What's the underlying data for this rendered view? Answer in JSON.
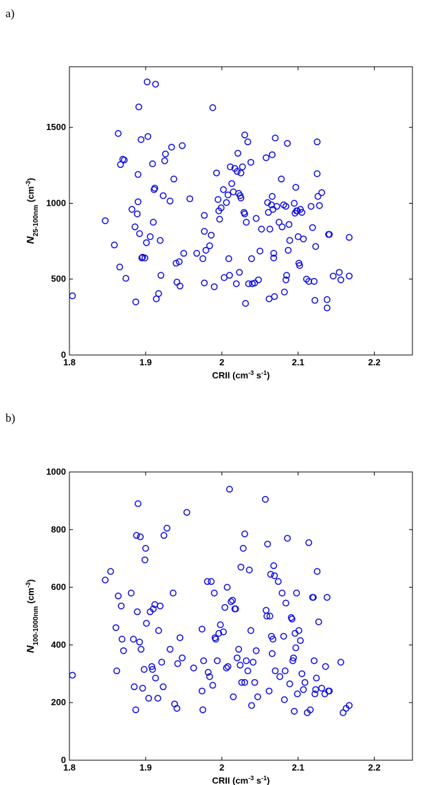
{
  "chart_data": [
    {
      "type": "scatter",
      "panel_label": "a)",
      "xlabel": {
        "base": "CRII  (cm",
        "sup1": "-3",
        "mid": " s",
        "sup2": "-1",
        "end": ")"
      },
      "ylabel": {
        "base": "N",
        "sub": "25-100nm",
        "mid": "  (cm",
        "sup": "-3",
        "end": ")"
      },
      "xlim": [
        1.8,
        2.25
      ],
      "ylim": [
        0,
        1900
      ],
      "xticks": [
        "1.8",
        "1.9",
        "2",
        "2.1",
        "2.2"
      ],
      "yticks": [
        "0",
        "500",
        "1000",
        "1500"
      ],
      "marker_color": "#1010e0",
      "points": [
        [
          1.804,
          390
        ],
        [
          1.847,
          885
        ],
        [
          1.859,
          725
        ],
        [
          1.864,
          1460
        ],
        [
          1.866,
          580
        ],
        [
          1.867,
          1255
        ],
        [
          1.87,
          1290
        ],
        [
          1.872,
          1285
        ],
        [
          1.874,
          505
        ],
        [
          1.882,
          960
        ],
        [
          1.886,
          845
        ],
        [
          1.887,
          350
        ],
        [
          1.889,
          930
        ],
        [
          1.89,
          1010
        ],
        [
          1.89,
          1190
        ],
        [
          1.891,
          1635
        ],
        [
          1.892,
          800
        ],
        [
          1.894,
          1420
        ],
        [
          1.895,
          640
        ],
        [
          1.896,
          645
        ],
        [
          1.899,
          640
        ],
        [
          1.901,
          740
        ],
        [
          1.902,
          1800
        ],
        [
          1.903,
          1440
        ],
        [
          1.906,
          780
        ],
        [
          1.909,
          1260
        ],
        [
          1.91,
          875
        ],
        [
          1.911,
          1090
        ],
        [
          1.912,
          1100
        ],
        [
          1.913,
          1785
        ],
        [
          1.914,
          370
        ],
        [
          1.917,
          405
        ],
        [
          1.919,
          755
        ],
        [
          1.92,
          525
        ],
        [
          1.923,
          1050
        ],
        [
          1.925,
          1280
        ],
        [
          1.926,
          1325
        ],
        [
          1.932,
          1015
        ],
        [
          1.934,
          1370
        ],
        [
          1.937,
          1160
        ],
        [
          1.94,
          605
        ],
        [
          1.941,
          480
        ],
        [
          1.944,
          615
        ],
        [
          1.945,
          455
        ],
        [
          1.948,
          1380
        ],
        [
          1.95,
          670
        ],
        [
          1.958,
          1030
        ],
        [
          1.967,
          670
        ],
        [
          1.975,
          635
        ],
        [
          1.977,
          920
        ],
        [
          1.977,
          815
        ],
        [
          1.977,
          475
        ],
        [
          1.979,
          690
        ],
        [
          1.984,
          720
        ],
        [
          1.986,
          790
        ],
        [
          1.988,
          1630
        ],
        [
          1.99,
          450
        ],
        [
          1.993,
          1200
        ],
        [
          1.995,
          1025
        ],
        [
          1.996,
          950
        ],
        [
          1.997,
          895
        ],
        [
          1.999,
          970
        ],
        [
          2.002,
          1090
        ],
        [
          2.003,
          510
        ],
        [
          2.006,
          1005
        ],
        [
          2.008,
          1055
        ],
        [
          2.009,
          635
        ],
        [
          2.01,
          525
        ],
        [
          2.011,
          1240
        ],
        [
          2.013,
          1130
        ],
        [
          2.015,
          1075
        ],
        [
          2.017,
          1230
        ],
        [
          2.019,
          470
        ],
        [
          2.02,
          1210
        ],
        [
          2.021,
          1330
        ],
        [
          2.022,
          1065
        ],
        [
          2.023,
          545
        ],
        [
          2.024,
          1050
        ],
        [
          2.025,
          1200
        ],
        [
          2.025,
          1035
        ],
        [
          2.027,
          1240
        ],
        [
          2.029,
          940
        ],
        [
          2.03,
          930
        ],
        [
          2.03,
          1450
        ],
        [
          2.031,
          340
        ],
        [
          2.032,
          875
        ],
        [
          2.034,
          1405
        ],
        [
          2.035,
          470
        ],
        [
          2.038,
          1270
        ],
        [
          2.039,
          635
        ],
        [
          2.04,
          470
        ],
        [
          2.043,
          475
        ],
        [
          2.045,
          900
        ],
        [
          2.048,
          495
        ],
        [
          2.05,
          685
        ],
        [
          2.052,
          830
        ],
        [
          2.058,
          1300
        ],
        [
          2.06,
          1005
        ],
        [
          2.061,
          940
        ],
        [
          2.062,
          370
        ],
        [
          2.063,
          830
        ],
        [
          2.065,
          990
        ],
        [
          2.066,
          1320
        ],
        [
          2.066,
          1045
        ],
        [
          2.067,
          960
        ],
        [
          2.068,
          670
        ],
        [
          2.068,
          640
        ],
        [
          2.069,
          385
        ],
        [
          2.07,
          1430
        ],
        [
          2.072,
          980
        ],
        [
          2.075,
          875
        ],
        [
          2.078,
          1160
        ],
        [
          2.079,
          845
        ],
        [
          2.081,
          990
        ],
        [
          2.082,
          415
        ],
        [
          2.084,
          980
        ],
        [
          2.084,
          495
        ],
        [
          2.085,
          525
        ],
        [
          2.086,
          1395
        ],
        [
          2.087,
          690
        ],
        [
          2.088,
          860
        ],
        [
          2.089,
          755
        ],
        [
          2.095,
          1000
        ],
        [
          2.096,
          935
        ],
        [
          2.097,
          1105
        ],
        [
          2.098,
          950
        ],
        [
          2.099,
          950
        ],
        [
          2.1,
          780
        ],
        [
          2.101,
          605
        ],
        [
          2.102,
          590
        ],
        [
          2.103,
          960
        ],
        [
          2.105,
          940
        ],
        [
          2.107,
          765
        ],
        [
          2.111,
          500
        ],
        [
          2.114,
          485
        ],
        [
          2.117,
          980
        ],
        [
          2.119,
          840
        ],
        [
          2.121,
          485
        ],
        [
          2.122,
          360
        ],
        [
          2.123,
          715
        ],
        [
          2.125,
          1405
        ],
        [
          2.125,
          1195
        ],
        [
          2.126,
          1045
        ],
        [
          2.128,
          985
        ],
        [
          2.131,
          1070
        ],
        [
          2.138,
          365
        ],
        [
          2.138,
          310
        ],
        [
          2.14,
          795
        ],
        [
          2.141,
          795
        ],
        [
          2.146,
          520
        ],
        [
          2.154,
          545
        ],
        [
          2.156,
          495
        ],
        [
          2.167,
          775
        ],
        [
          2.167,
          520
        ]
      ]
    },
    {
      "type": "scatter",
      "panel_label": "b)",
      "xlabel": {
        "base": "CRII  (cm",
        "sup1": "-3",
        "mid": " s",
        "sup2": "-1",
        "end": ")"
      },
      "ylabel": {
        "base": "N",
        "sub": "100-1000nm",
        "mid": "  (cm",
        "sup": "-3",
        "end": ")"
      },
      "xlim": [
        1.8,
        2.25
      ],
      "ylim": [
        0,
        1000
      ],
      "xticks": [
        "1.8",
        "1.9",
        "2",
        "2.1",
        "2.2"
      ],
      "yticks": [
        "0",
        "200",
        "400",
        "600",
        "800",
        "1000"
      ],
      "marker_color": "#1010e0",
      "points": [
        [
          1.804,
          295
        ],
        [
          1.847,
          625
        ],
        [
          1.854,
          655
        ],
        [
          1.861,
          460
        ],
        [
          1.862,
          310
        ],
        [
          1.864,
          570
        ],
        [
          1.868,
          535
        ],
        [
          1.869,
          420
        ],
        [
          1.871,
          380
        ],
        [
          1.881,
          580
        ],
        [
          1.884,
          420
        ],
        [
          1.885,
          255
        ],
        [
          1.887,
          175
        ],
        [
          1.888,
          780
        ],
        [
          1.889,
          515
        ],
        [
          1.89,
          890
        ],
        [
          1.892,
          410
        ],
        [
          1.893,
          775
        ],
        [
          1.894,
          385
        ],
        [
          1.896,
          250
        ],
        [
          1.898,
          315
        ],
        [
          1.899,
          695
        ],
        [
          1.9,
          735
        ],
        [
          1.901,
          475
        ],
        [
          1.904,
          215
        ],
        [
          1.906,
          515
        ],
        [
          1.908,
          325
        ],
        [
          1.909,
          315
        ],
        [
          1.91,
          525
        ],
        [
          1.912,
          540
        ],
        [
          1.913,
          285
        ],
        [
          1.916,
          215
        ],
        [
          1.917,
          450
        ],
        [
          1.919,
          535
        ],
        [
          1.921,
          340
        ],
        [
          1.923,
          255
        ],
        [
          1.924,
          780
        ],
        [
          1.928,
          805
        ],
        [
          1.932,
          385
        ],
        [
          1.936,
          580
        ],
        [
          1.938,
          195
        ],
        [
          1.941,
          180
        ],
        [
          1.942,
          335
        ],
        [
          1.945,
          425
        ],
        [
          1.948,
          355
        ],
        [
          1.954,
          860
        ],
        [
          1.963,
          320
        ],
        [
          1.974,
          455
        ],
        [
          1.974,
          240
        ],
        [
          1.975,
          175
        ],
        [
          1.976,
          345
        ],
        [
          1.981,
          620
        ],
        [
          1.982,
          305
        ],
        [
          1.984,
          290
        ],
        [
          1.986,
          620
        ],
        [
          1.988,
          260
        ],
        [
          1.99,
          580
        ],
        [
          1.991,
          425
        ],
        [
          1.992,
          420
        ],
        [
          1.994,
          345
        ],
        [
          1.996,
          440
        ],
        [
          1.998,
          470
        ],
        [
          2.002,
          445
        ],
        [
          2.004,
          530
        ],
        [
          2.006,
          320
        ],
        [
          2.007,
          600
        ],
        [
          2.008,
          325
        ],
        [
          2.01,
          940
        ],
        [
          2.012,
          550
        ],
        [
          2.014,
          555
        ],
        [
          2.015,
          220
        ],
        [
          2.017,
          525
        ],
        [
          2.018,
          525
        ],
        [
          2.02,
          355
        ],
        [
          2.022,
          385
        ],
        [
          2.024,
          330
        ],
        [
          2.025,
          670
        ],
        [
          2.026,
          270
        ],
        [
          2.028,
          735
        ],
        [
          2.03,
          785
        ],
        [
          2.03,
          270
        ],
        [
          2.032,
          345
        ],
        [
          2.034,
          310
        ],
        [
          2.036,
          660
        ],
        [
          2.038,
          450
        ],
        [
          2.039,
          190
        ],
        [
          2.041,
          340
        ],
        [
          2.043,
          270
        ],
        [
          2.045,
          380
        ],
        [
          2.047,
          220
        ],
        [
          2.057,
          905
        ],
        [
          2.058,
          520
        ],
        [
          2.059,
          500
        ],
        [
          2.06,
          750
        ],
        [
          2.062,
          240
        ],
        [
          2.063,
          500
        ],
        [
          2.064,
          645
        ],
        [
          2.065,
          430
        ],
        [
          2.066,
          370
        ],
        [
          2.067,
          420
        ],
        [
          2.068,
          675
        ],
        [
          2.069,
          640
        ],
        [
          2.07,
          310
        ],
        [
          2.074,
          620
        ],
        [
          2.076,
          290
        ],
        [
          2.079,
          580
        ],
        [
          2.081,
          430
        ],
        [
          2.082,
          210
        ],
        [
          2.083,
          310
        ],
        [
          2.084,
          545
        ],
        [
          2.086,
          770
        ],
        [
          2.089,
          265
        ],
        [
          2.091,
          495
        ],
        [
          2.092,
          490
        ],
        [
          2.093,
          345
        ],
        [
          2.094,
          355
        ],
        [
          2.095,
          170
        ],
        [
          2.096,
          440
        ],
        [
          2.097,
          390
        ],
        [
          2.098,
          580
        ],
        [
          2.099,
          230
        ],
        [
          2.101,
          450
        ],
        [
          2.103,
          415
        ],
        [
          2.105,
          300
        ],
        [
          2.107,
          245
        ],
        [
          2.109,
          270
        ],
        [
          2.112,
          165
        ],
        [
          2.114,
          755
        ],
        [
          2.116,
          175
        ],
        [
          2.119,
          565
        ],
        [
          2.12,
          565
        ],
        [
          2.121,
          345
        ],
        [
          2.122,
          230
        ],
        [
          2.123,
          245
        ],
        [
          2.124,
          285
        ],
        [
          2.125,
          655
        ],
        [
          2.127,
          480
        ],
        [
          2.131,
          250
        ],
        [
          2.135,
          230
        ],
        [
          2.136,
          325
        ],
        [
          2.138,
          565
        ],
        [
          2.14,
          240
        ],
        [
          2.141,
          240
        ],
        [
          2.156,
          340
        ],
        [
          2.159,
          165
        ],
        [
          2.163,
          180
        ],
        [
          2.167,
          190
        ]
      ]
    }
  ]
}
